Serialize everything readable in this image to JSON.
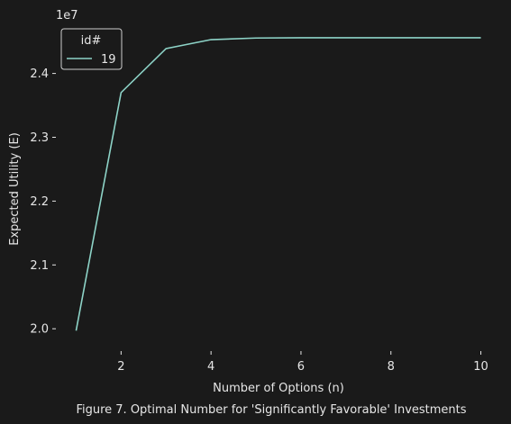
{
  "chart_data": {
    "type": "line",
    "title": "",
    "caption": "Figure 7. Optimal Number for 'Significantly Favorable' Investments",
    "xlabel": "Number of Options (n)",
    "ylabel": "Expected Utility (E)",
    "y_offset_label": "1e7",
    "y_scale": 10000000,
    "xlim": [
      0.55,
      10.45
    ],
    "ylim": [
      19650000,
      24770000
    ],
    "x_ticks": [
      2,
      4,
      6,
      8,
      10
    ],
    "y_ticks": [
      20000000,
      21000000,
      22000000,
      23000000,
      24000000
    ],
    "x_tick_labels": [
      "2",
      "4",
      "6",
      "8",
      "10"
    ],
    "y_tick_labels": [
      "2.0",
      "2.1",
      "2.2",
      "2.3",
      "2.4"
    ],
    "grid": false,
    "legend": {
      "title": "id#",
      "placement": "top-left",
      "entries": [
        "19"
      ]
    },
    "x": [
      1,
      2,
      3,
      4,
      5,
      6,
      7,
      8,
      9,
      10
    ],
    "series": [
      {
        "name": "19",
        "color": "#8dd3c7",
        "values": [
          19970000,
          23700000,
          24390000,
          24530000,
          24555000,
          24560000,
          24560000,
          24560000,
          24560000,
          24560000
        ]
      }
    ]
  }
}
